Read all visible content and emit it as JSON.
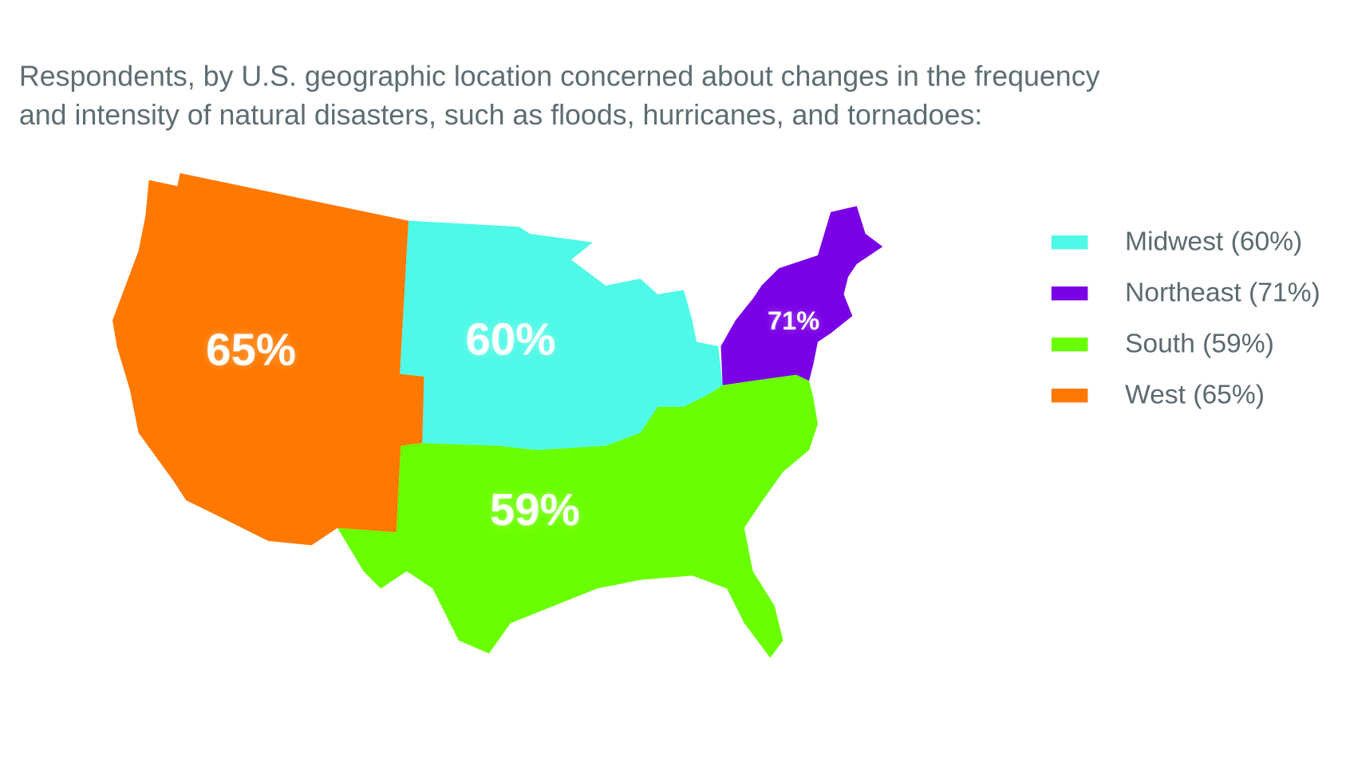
{
  "chart_data": {
    "type": "map",
    "title": [
      "Respondents, by U.S. geographic location concerned about changes in the frequency",
      "and intensity of natural disasters, such as floods, hurricanes, and tornadoes:"
    ],
    "categories": [
      "Midwest",
      "Northeast",
      "South",
      "West"
    ],
    "values": [
      60,
      71,
      59,
      65
    ],
    "value_labels": [
      "60%",
      "71%",
      "59%",
      "65%"
    ],
    "legend_labels": [
      "Midwest (60%)",
      "Northeast (71%)",
      "South (59%)",
      "West (65%)"
    ],
    "colors": [
      "#4ef9e7",
      "#7a00e6",
      "#6aff00",
      "#ff7800"
    ]
  }
}
